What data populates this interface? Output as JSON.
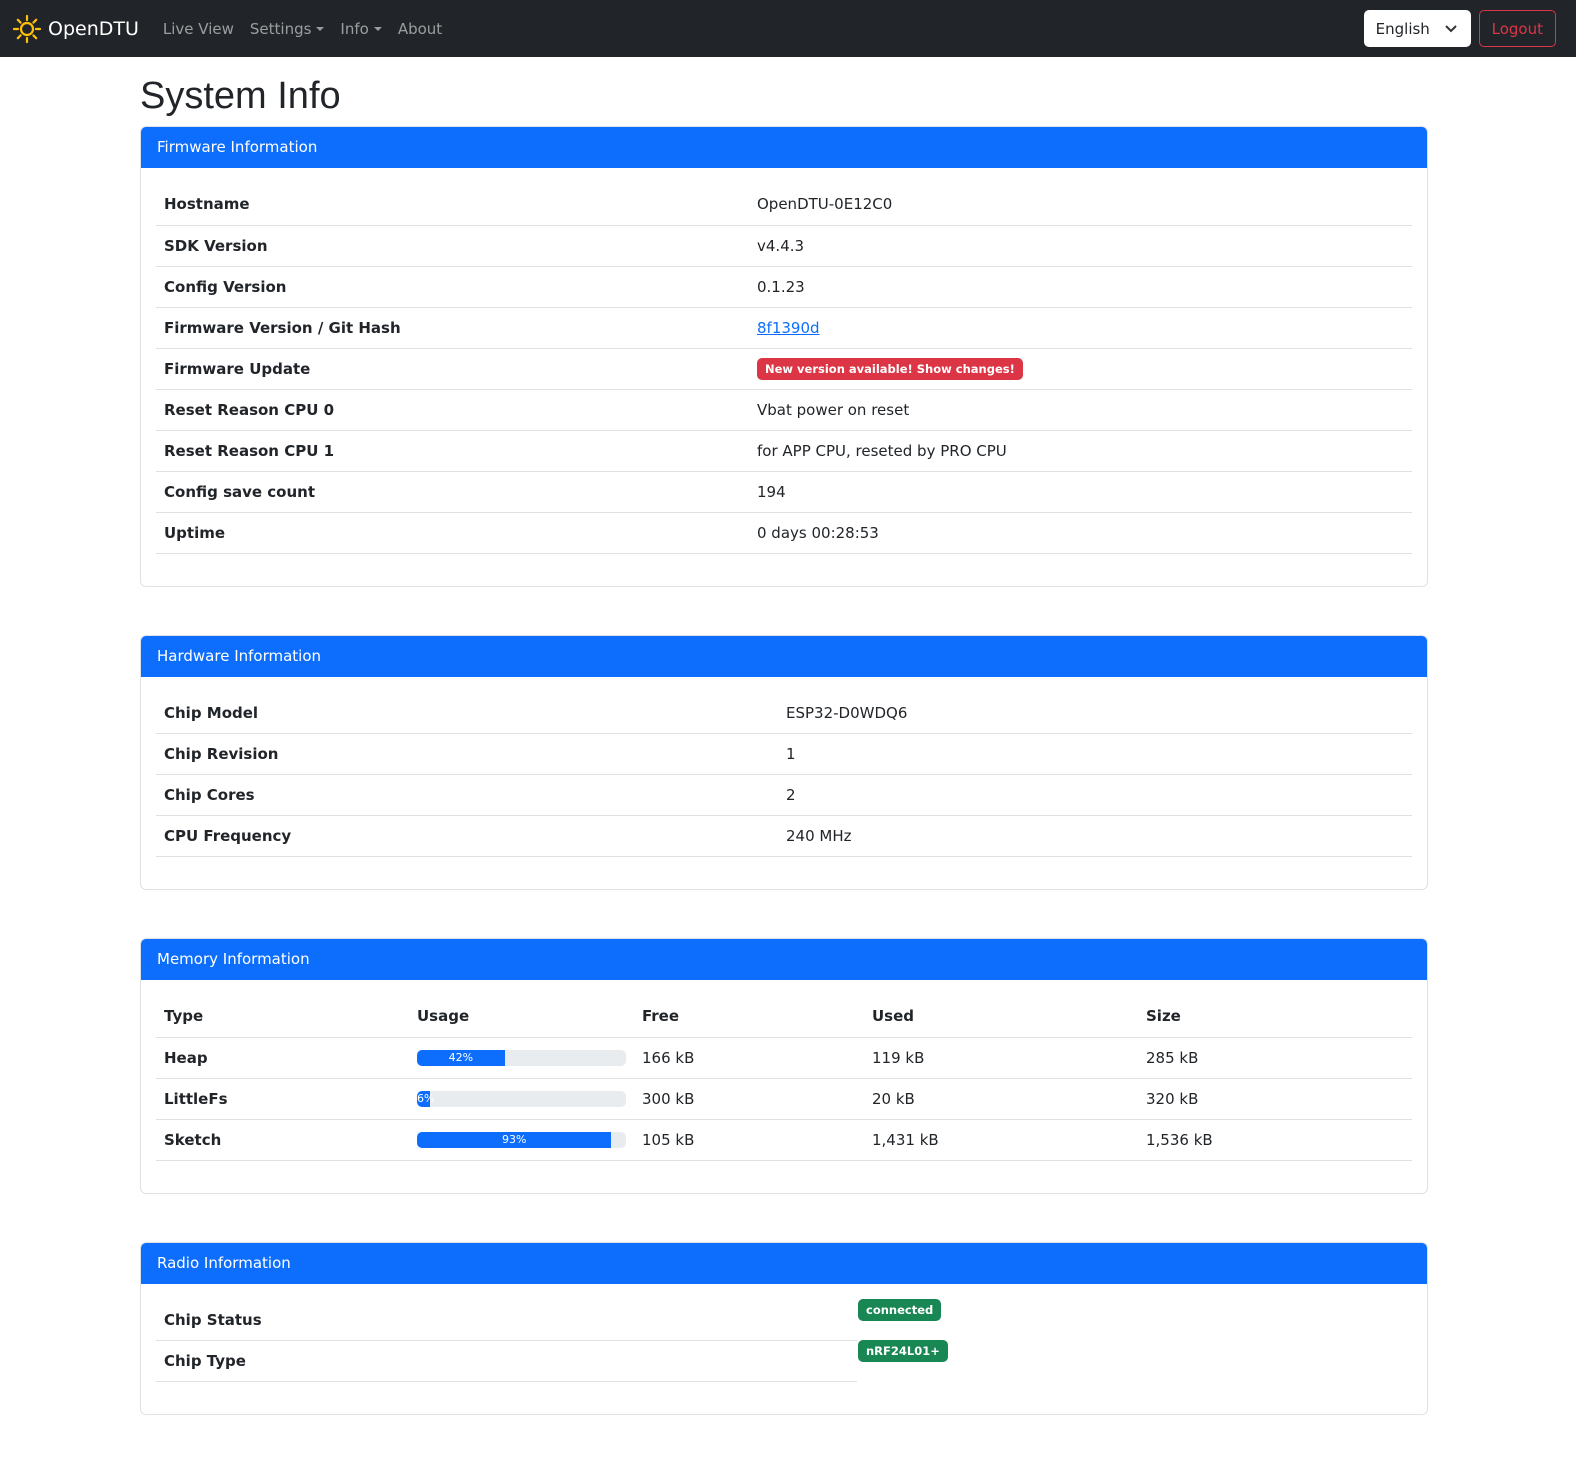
{
  "nav": {
    "brand": "OpenDTU",
    "items": [
      {
        "label": "Live View",
        "dropdown": false
      },
      {
        "label": "Settings",
        "dropdown": true
      },
      {
        "label": "Info",
        "dropdown": true
      },
      {
        "label": "About",
        "dropdown": false
      }
    ],
    "language": "English",
    "logout": "Logout"
  },
  "page_title": "System Info",
  "firmware": {
    "title": "Firmware Information",
    "rows": [
      {
        "label": "Hostname",
        "value": "OpenDTU-0E12C0"
      },
      {
        "label": "SDK Version",
        "value": "v4.4.3"
      },
      {
        "label": "Config Version",
        "value": "0.1.23"
      },
      {
        "label": "Firmware Version / Git Hash",
        "value": "8f1390d",
        "type": "link"
      },
      {
        "label": "Firmware Update",
        "value": "New version available! Show changes!",
        "type": "badge-danger"
      },
      {
        "label": "Reset Reason CPU 0",
        "value": "Vbat power on reset"
      },
      {
        "label": "Reset Reason CPU 1",
        "value": "for APP CPU, reseted by PRO CPU"
      },
      {
        "label": "Config save count",
        "value": "194"
      },
      {
        "label": "Uptime",
        "value": "0 days 00:28:53"
      }
    ]
  },
  "hardware": {
    "title": "Hardware Information",
    "rows": [
      {
        "label": "Chip Model",
        "value": "ESP32-D0WDQ6"
      },
      {
        "label": "Chip Revision",
        "value": "1"
      },
      {
        "label": "Chip Cores",
        "value": "2"
      },
      {
        "label": "CPU Frequency",
        "value": "240 MHz"
      }
    ]
  },
  "memory": {
    "title": "Memory Information",
    "headers": [
      "Type",
      "Usage",
      "Free",
      "Used",
      "Size"
    ],
    "rows": [
      {
        "type": "Heap",
        "usage": 42,
        "usage_label": "42%",
        "free": "166 kB",
        "used": "119 kB",
        "size": "285 kB"
      },
      {
        "type": "LittleFs",
        "usage": 6,
        "usage_label": "6%",
        "free": "300 kB",
        "used": "20 kB",
        "size": "320 kB"
      },
      {
        "type": "Sketch",
        "usage": 93,
        "usage_label": "93%",
        "free": "105 kB",
        "used": "1,431 kB",
        "size": "1,536 kB"
      }
    ]
  },
  "radio": {
    "title": "Radio Information",
    "rows": [
      {
        "label": "Chip Status",
        "value": "connected"
      },
      {
        "label": "Chip Type",
        "value": "nRF24L01+"
      }
    ]
  },
  "colors": {
    "primary": "#0d6efd",
    "danger": "#dc3545",
    "success": "#198754",
    "navbar": "#212529",
    "brand_icon": "#ffc107"
  }
}
